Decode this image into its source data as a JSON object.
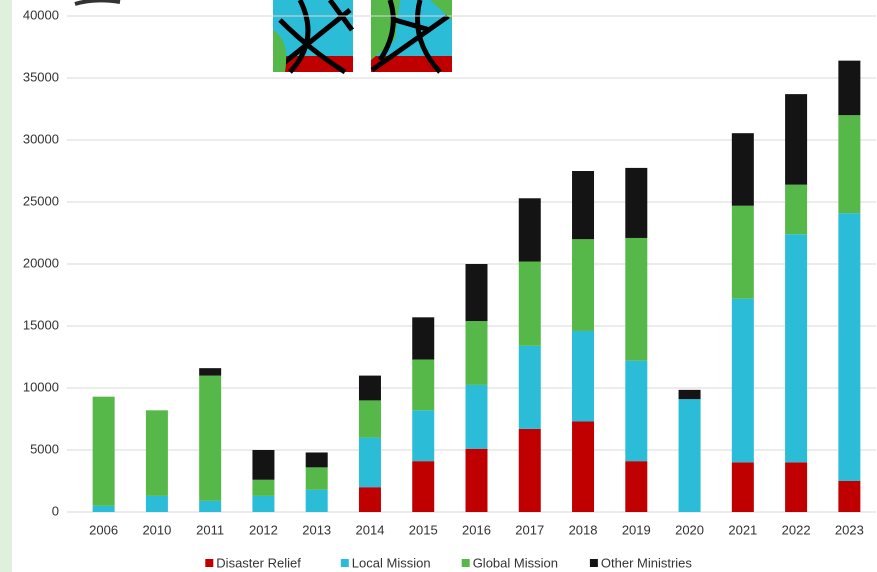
{
  "chart_data": {
    "type": "stacked-bar",
    "categories": [
      "2006",
      "2010",
      "2011",
      "2012",
      "2013",
      "2014",
      "2015",
      "2016",
      "2017",
      "2018",
      "2019",
      "2020",
      "2021",
      "2022",
      "2023"
    ],
    "series": [
      {
        "name": "Disaster Relief",
        "color": "#c00000",
        "values": [
          0,
          0,
          0,
          0,
          0,
          2000,
          4100,
          5100,
          6700,
          7300,
          4100,
          0,
          4000,
          4000,
          2500
        ]
      },
      {
        "name": "Local Mission",
        "color": "#2bbcd8",
        "values": [
          500,
          1300,
          900,
          1300,
          1800,
          4000,
          4100,
          5150,
          6700,
          7300,
          8100,
          9100,
          13200,
          18400,
          21600
        ]
      },
      {
        "name": "Global Mission",
        "color": "#56b848",
        "values": [
          8800,
          6900,
          10100,
          1300,
          1800,
          3000,
          4100,
          5150,
          6800,
          7400,
          9900,
          0,
          7500,
          4000,
          7900
        ]
      },
      {
        "name": "Other Ministries",
        "color": "#141414",
        "values": [
          0,
          0,
          600,
          2400,
          1200,
          2000,
          3400,
          4600,
          5100,
          5500,
          5650,
          750,
          5850,
          7300,
          4400
        ]
      }
    ],
    "ylim": [
      0,
      40000
    ],
    "yticks": [
      0,
      5000,
      10000,
      15000,
      20000,
      25000,
      30000,
      35000,
      40000
    ],
    "grid": true,
    "legend": "bottom"
  }
}
